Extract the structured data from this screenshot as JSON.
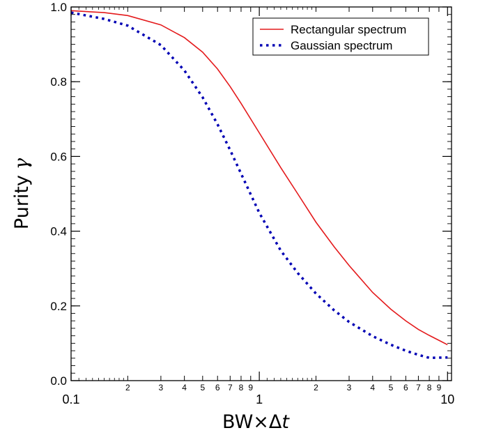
{
  "chart_data": {
    "type": "line",
    "xscale": "log",
    "xlim": [
      0.1,
      10.5
    ],
    "ylim": [
      0.0,
      1.0
    ],
    "xlabel": "BW×Δt",
    "ylabel": "Purity γ",
    "ylabel_text": "Purity",
    "ylabel_symbol": "γ",
    "xlabel_prefix": "BW×Δ",
    "xlabel_symbol": "t",
    "grid": false,
    "legend_position": "top-right",
    "x_major_ticks": [
      {
        "value": 0.1,
        "label": "0.1"
      },
      {
        "value": 1,
        "label": "1"
      },
      {
        "value": 10,
        "label": "10"
      }
    ],
    "x_minor_ticks": [
      {
        "value": 0.2,
        "label": "2"
      },
      {
        "value": 0.3,
        "label": "3"
      },
      {
        "value": 0.4,
        "label": "4"
      },
      {
        "value": 0.5,
        "label": "5"
      },
      {
        "value": 0.6,
        "label": "6"
      },
      {
        "value": 0.7,
        "label": "7"
      },
      {
        "value": 0.8,
        "label": "8"
      },
      {
        "value": 0.9,
        "label": "9"
      },
      {
        "value": 2,
        "label": "2"
      },
      {
        "value": 3,
        "label": "3"
      },
      {
        "value": 4,
        "label": "4"
      },
      {
        "value": 5,
        "label": "5"
      },
      {
        "value": 6,
        "label": "6"
      },
      {
        "value": 7,
        "label": "7"
      },
      {
        "value": 8,
        "label": "8"
      },
      {
        "value": 9,
        "label": "9"
      }
    ],
    "y_ticks": [
      {
        "value": 0.0,
        "label": "0.0"
      },
      {
        "value": 0.2,
        "label": "0.2"
      },
      {
        "value": 0.4,
        "label": "0.4"
      },
      {
        "value": 0.6,
        "label": "0.6"
      },
      {
        "value": 0.8,
        "label": "0.8"
      },
      {
        "value": 1.0,
        "label": "1.0"
      }
    ],
    "series": [
      {
        "name": "Rectangular spectrum",
        "color": "#e41a1c",
        "style": "solid",
        "x": [
          0.1,
          0.15,
          0.2,
          0.3,
          0.4,
          0.5,
          0.6,
          0.7,
          0.8,
          1.0,
          1.3,
          1.6,
          2.0,
          2.5,
          3.0,
          4.0,
          5.0,
          6.0,
          7.0,
          8.0,
          10.0
        ],
        "values": [
          0.99,
          0.985,
          0.977,
          0.952,
          0.918,
          0.879,
          0.834,
          0.787,
          0.742,
          0.663,
          0.57,
          0.5,
          0.424,
          0.358,
          0.308,
          0.236,
          0.191,
          0.16,
          0.137,
          0.121,
          0.096
        ]
      },
      {
        "name": "Gaussian spectrum",
        "color": "#0000b4",
        "style": "dotted",
        "x": [
          0.1,
          0.15,
          0.2,
          0.3,
          0.4,
          0.5,
          0.6,
          0.7,
          0.8,
          1.0,
          1.3,
          1.6,
          2.0,
          2.5,
          3.0,
          4.0,
          5.0,
          6.0,
          7.0,
          8.0,
          10.0
        ],
        "values": [
          0.985,
          0.968,
          0.95,
          0.898,
          0.83,
          0.758,
          0.686,
          0.617,
          0.554,
          0.449,
          0.348,
          0.288,
          0.233,
          0.188,
          0.157,
          0.119,
          0.096,
          0.08,
          0.069,
          0.061,
          0.062
        ]
      }
    ]
  }
}
